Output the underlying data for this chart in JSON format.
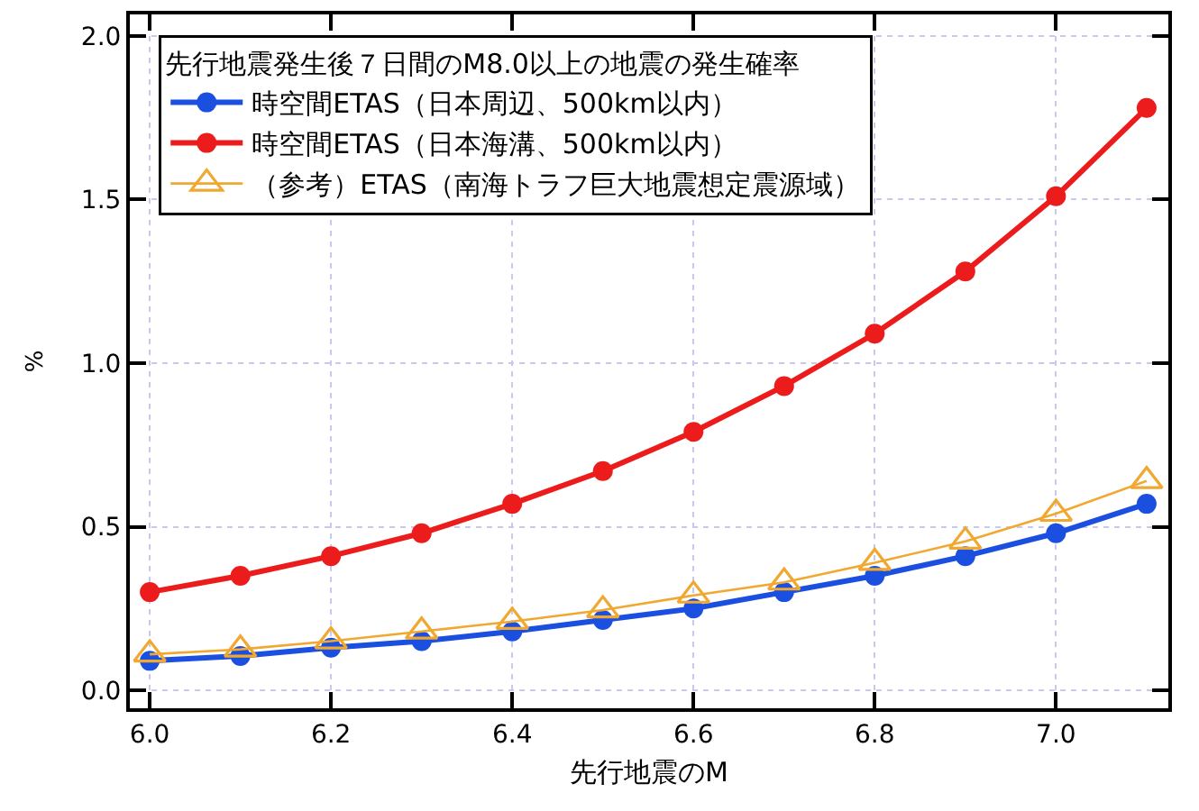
{
  "chart_data": {
    "type": "line",
    "xlabel": "先行地震のM",
    "ylabel": "%",
    "legend_title": "先行地震発生後７日間のM8.0以上の地震の発生確率",
    "x": [
      6.0,
      6.1,
      6.2,
      6.3,
      6.4,
      6.5,
      6.6,
      6.7,
      6.8,
      6.9,
      7.0,
      7.1
    ],
    "series": [
      {
        "name": "時空間ETAS（日本周辺、500km以内）",
        "color": "#1a4fe0",
        "marker": "circle",
        "values": [
          0.09,
          0.105,
          0.13,
          0.15,
          0.18,
          0.215,
          0.25,
          0.3,
          0.35,
          0.41,
          0.48,
          0.57
        ]
      },
      {
        "name": "時空間ETAS（日本海溝、500km以内）",
        "color": "#ec1c1c",
        "marker": "circle",
        "values": [
          0.3,
          0.35,
          0.41,
          0.48,
          0.57,
          0.67,
          0.79,
          0.93,
          1.09,
          1.28,
          1.51,
          1.78
        ]
      },
      {
        "name": "（参考）ETAS（南海トラフ巨大地震想定震源域）",
        "color": "#f0a830",
        "marker": "triangle",
        "values": [
          0.11,
          0.125,
          0.15,
          0.18,
          0.21,
          0.245,
          0.29,
          0.33,
          0.39,
          0.455,
          0.54,
          0.64
        ]
      }
    ],
    "xlim": [
      5.978,
      7.124
    ],
    "xticks": [
      {
        "value": 6,
        "label": "6.0"
      },
      6.2,
      6.4,
      6.6,
      6.8,
      {
        "value": 7,
        "label": "7.0"
      }
    ],
    "ylim": [
      -0.055,
      2.066
    ],
    "yticks": [
      {
        "value": 0,
        "label": "0.0"
      },
      0.5,
      {
        "value": 1,
        "label": "1.0"
      },
      1.5,
      {
        "value": 2,
        "label": "2.0"
      }
    ],
    "grid": true,
    "legend": "top left",
    "line_style": "solid"
  }
}
